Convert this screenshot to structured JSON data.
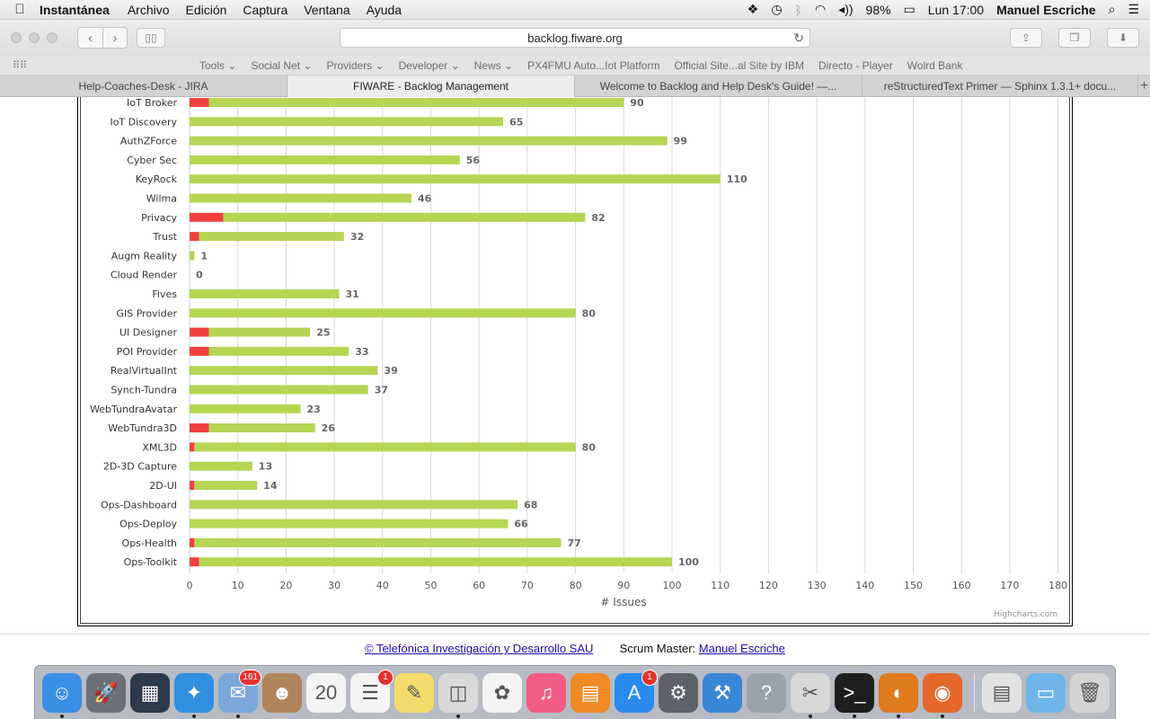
{
  "menubar": {
    "app": "Instantánea",
    "menus": [
      "Archivo",
      "Edición",
      "Captura",
      "Ventana",
      "Ayuda"
    ],
    "battery": "98%",
    "clock": "Lun 17:00",
    "user": "Manuel Escriche"
  },
  "browser": {
    "url": "backlog.fiware.org",
    "bookmarks": [
      "Tools ⌄",
      "Social Net ⌄",
      "Providers ⌄",
      "Developer ⌄",
      "News ⌄",
      "PX4FMU Auto...Iot Platform",
      "Official Site...al Site by IBM",
      "Directo - Player",
      "Wolrd Bank"
    ],
    "tabs": [
      {
        "label": "Help-Coaches-Desk - JIRA",
        "active": false
      },
      {
        "label": "FIWARE - Backlog Management",
        "active": true
      },
      {
        "label": "Welcome to Backlog and Help Desk's Guide! —...",
        "active": false
      },
      {
        "label": "reStructuredText Primer — Sphinx 1.3.1+ docu...",
        "active": false
      }
    ]
  },
  "chart_data": {
    "type": "bar",
    "orientation": "horizontal",
    "stacked": true,
    "categories": [
      "IoT Broker",
      "IoT Discovery",
      "AuthZForce",
      "Cyber Sec",
      "KeyRock",
      "Wilma",
      "Privacy",
      "Trust",
      "Augm Reality",
      "Cloud Render",
      "Fives",
      "GIS Provider",
      "UI Designer",
      "POI Provider",
      "RealVirtualInt",
      "Synch-Tundra",
      "WebTundraAvatar",
      "WebTundra3D",
      "XML3D",
      "2D-3D Capture",
      "2D-UI",
      "Ops-Dashboard",
      "Ops-Deploy",
      "Ops-Health",
      "Ops-Toolkit"
    ],
    "series": [
      {
        "color": "#f04040",
        "values": [
          4,
          0,
          0,
          0,
          0,
          0,
          7,
          2,
          0,
          0,
          0,
          0,
          4,
          4,
          0,
          0,
          0,
          4,
          1,
          0,
          1,
          0,
          0,
          1,
          2
        ]
      },
      {
        "color": "#b5d553",
        "values": [
          86,
          65,
          99,
          56,
          110,
          46,
          75,
          30,
          1,
          0,
          31,
          80,
          21,
          29,
          39,
          37,
          23,
          22,
          79,
          13,
          13,
          68,
          66,
          76,
          98
        ]
      }
    ],
    "totals": [
      90,
      65,
      99,
      56,
      110,
      46,
      82,
      32,
      1,
      0,
      31,
      80,
      25,
      33,
      39,
      37,
      23,
      26,
      80,
      13,
      14,
      68,
      66,
      77,
      100
    ],
    "xlabel": "# Issues",
    "xlim": [
      0,
      180
    ],
    "xticks": [
      0,
      10,
      20,
      30,
      40,
      50,
      60,
      70,
      80,
      90,
      100,
      110,
      120,
      130,
      140,
      150,
      160,
      170,
      180
    ],
    "grid": true,
    "credits": "Highcharts.com"
  },
  "footer": {
    "company_link": "© Telefónica Investigación y Desarrollo SAU",
    "scrum_label": "Scrum Master:",
    "scrum_link": "Manuel Escriche"
  },
  "dock": {
    "apps": [
      {
        "name": "finder-icon",
        "color": "#3b8ee6",
        "glyph": "☺",
        "running": true
      },
      {
        "name": "launchpad-icon",
        "color": "#6b6f78",
        "glyph": "🚀",
        "running": false
      },
      {
        "name": "mission-control-icon",
        "color": "#2c3a4a",
        "glyph": "▦",
        "running": false
      },
      {
        "name": "safari-icon",
        "color": "#2f8fe0",
        "glyph": "✦",
        "running": true
      },
      {
        "name": "mail-icon",
        "color": "#7da7d9",
        "glyph": "✉",
        "running": true,
        "badge": "161"
      },
      {
        "name": "contacts-icon",
        "color": "#b0845a",
        "glyph": "☻",
        "running": false
      },
      {
        "name": "calendar-icon",
        "color": "#f4f4f4",
        "glyph": "20",
        "running": false
      },
      {
        "name": "reminders-icon",
        "color": "#f4f4f4",
        "glyph": "☰",
        "running": false,
        "badge": "1"
      },
      {
        "name": "notes-icon",
        "color": "#f3dc6b",
        "glyph": "✎",
        "running": false
      },
      {
        "name": "preview-icon",
        "color": "#d9d9d9",
        "glyph": "◫",
        "running": true
      },
      {
        "name": "photos-icon",
        "color": "#f4f4f4",
        "glyph": "✿",
        "running": false
      },
      {
        "name": "itunes-icon",
        "color": "#f05c85",
        "glyph": "♫",
        "running": false
      },
      {
        "name": "ibooks-icon",
        "color": "#f08a24",
        "glyph": "▤",
        "running": false
      },
      {
        "name": "app-store-icon",
        "color": "#2a8bef",
        "glyph": "A",
        "running": false,
        "badge": "1"
      },
      {
        "name": "system-preferences-icon",
        "color": "#5d6168",
        "glyph": "⚙",
        "running": false
      },
      {
        "name": "xcode-icon",
        "color": "#3a86d6",
        "glyph": "⚒",
        "running": false
      },
      {
        "name": "help-icon",
        "color": "#9aa3ad",
        "glyph": "?",
        "running": false
      },
      {
        "name": "screenshot-icon",
        "color": "#d8d8d8",
        "glyph": "✂",
        "running": true
      },
      {
        "name": "terminal-icon",
        "color": "#1e1e1e",
        "glyph": ">_",
        "running": true
      },
      {
        "name": "eclipse-icon",
        "color": "#e07a1f",
        "glyph": "◐",
        "running": true
      },
      {
        "name": "firefox-icon",
        "color": "#e5682a",
        "glyph": "◉",
        "running": true
      }
    ],
    "right": [
      {
        "name": "documents-folder-icon",
        "color": "#e2e2e2",
        "glyph": "▤"
      },
      {
        "name": "downloads-folder-icon",
        "color": "#6fb5ea",
        "glyph": "▭"
      },
      {
        "name": "trash-icon",
        "color": "#d4d4d4",
        "glyph": "🗑"
      }
    ]
  }
}
